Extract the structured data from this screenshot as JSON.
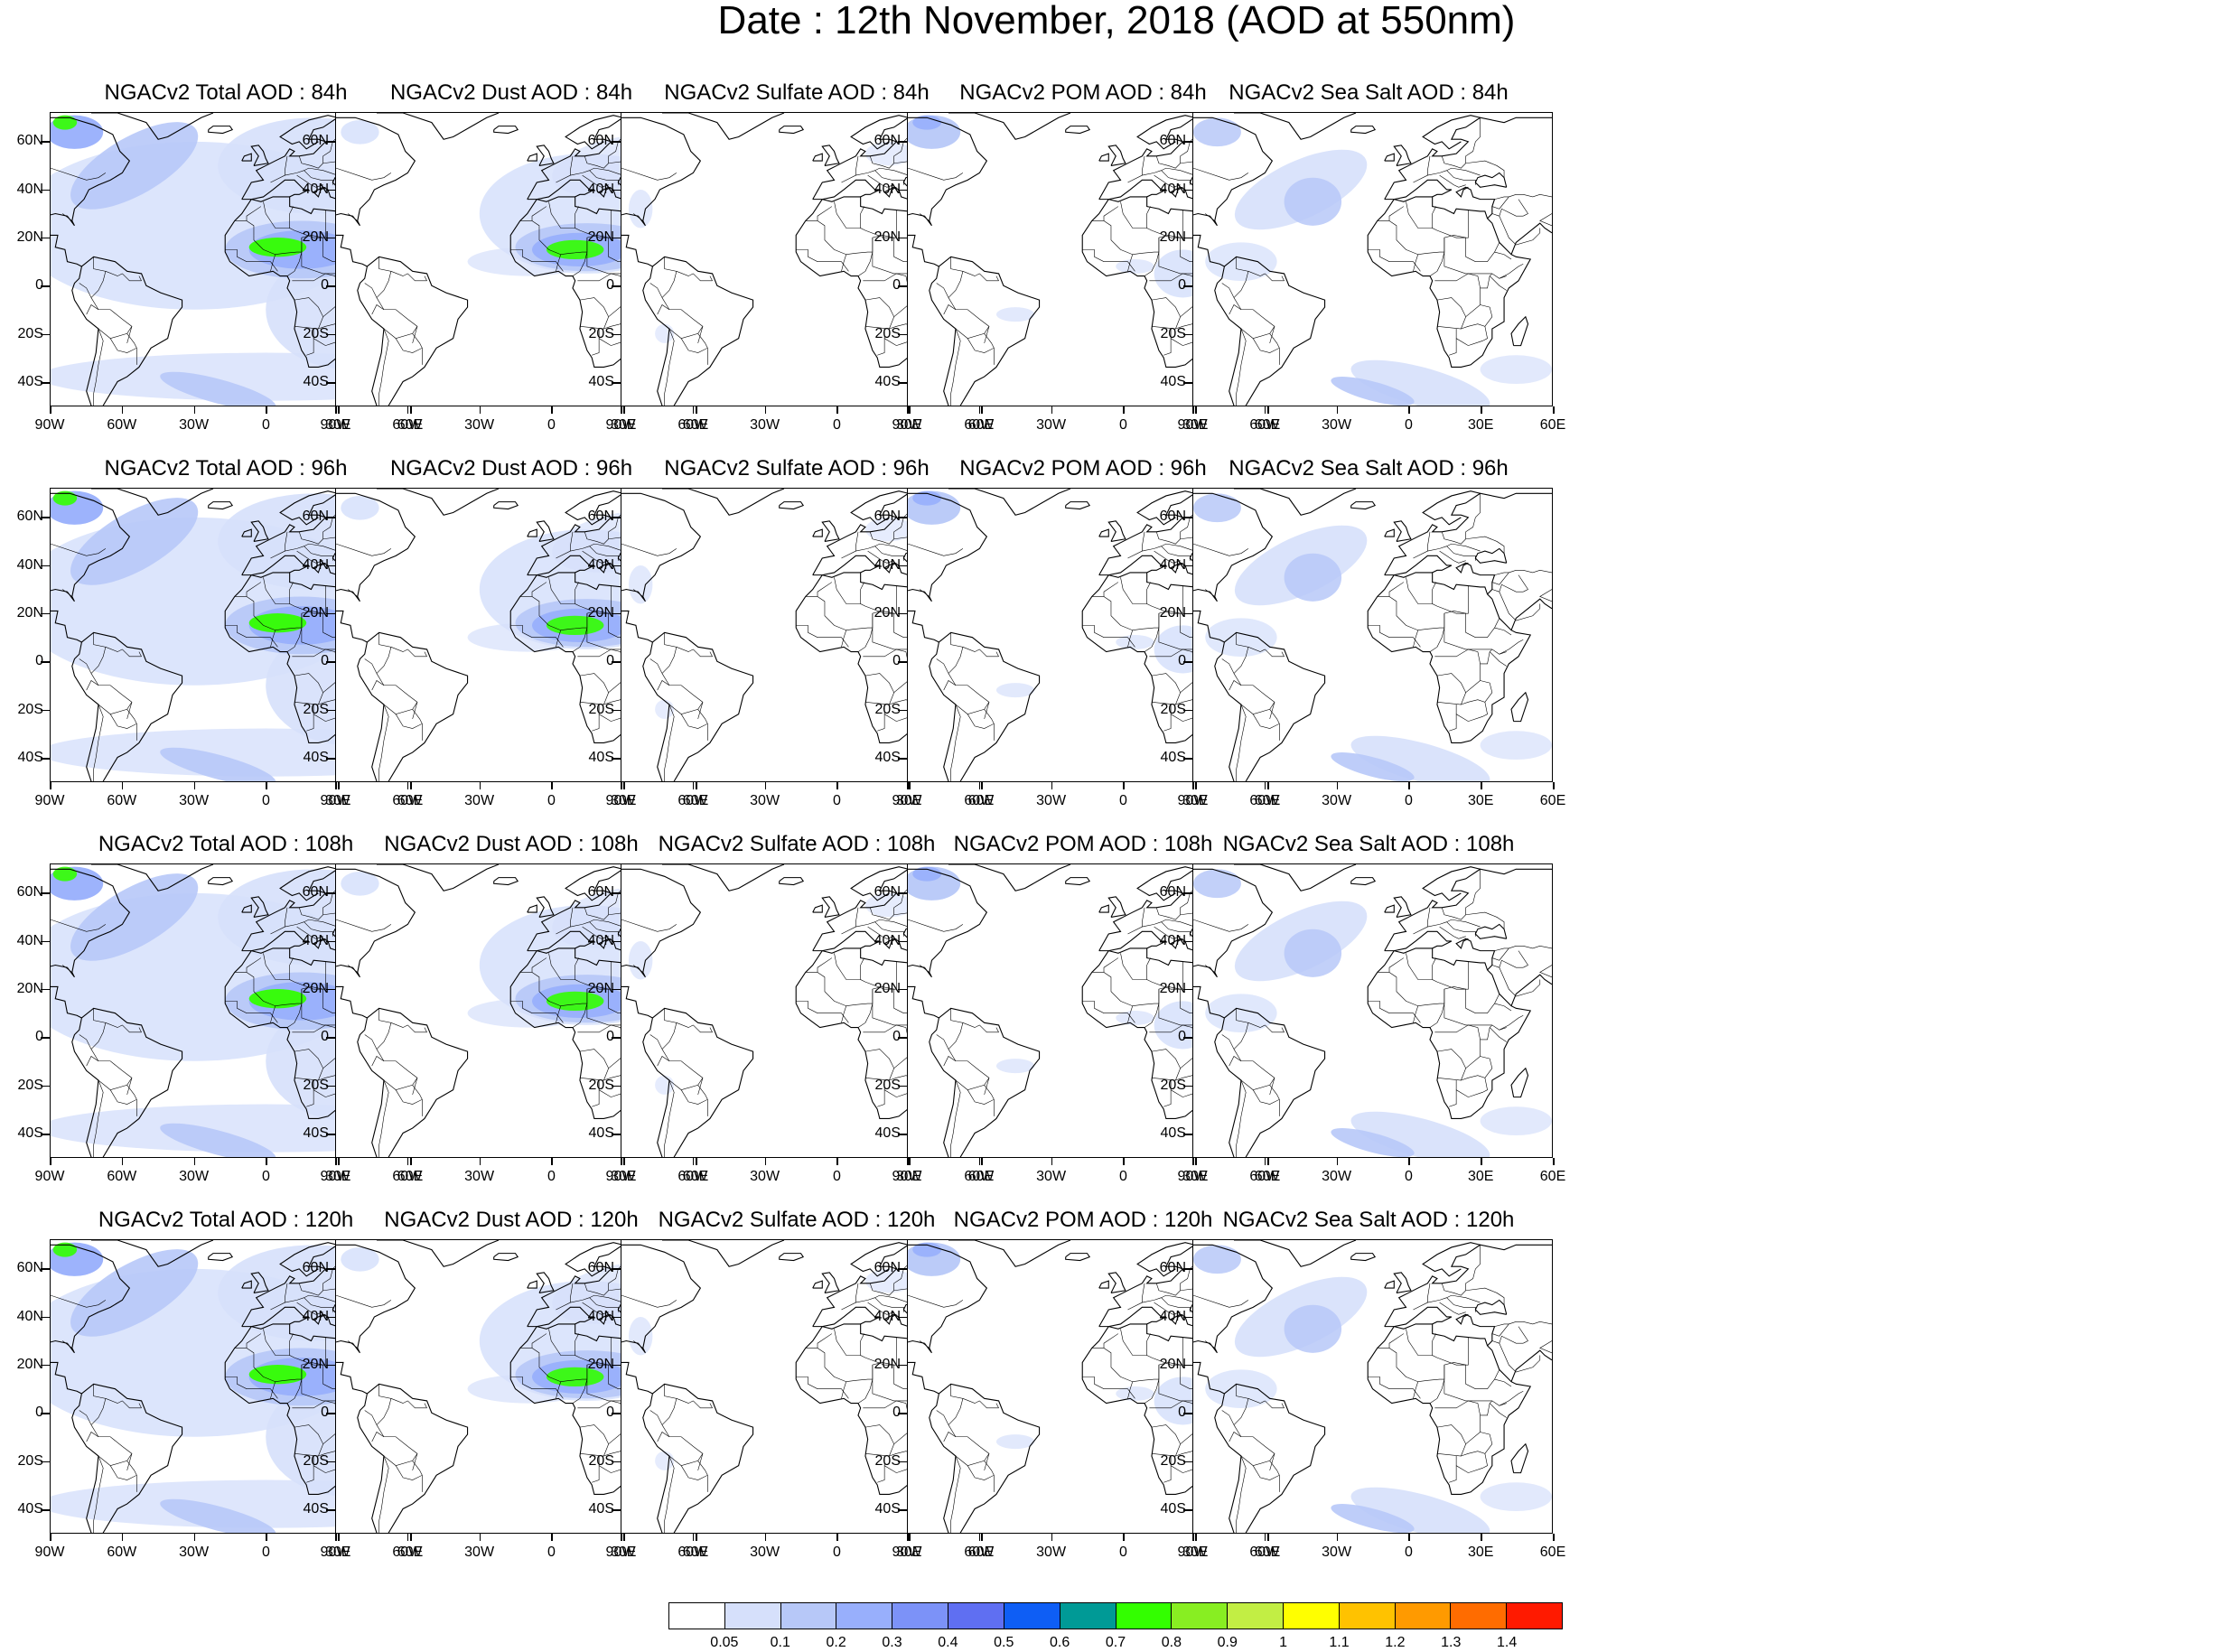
{
  "title": "Date : 12th November, 2018 (AOD at 550nm)",
  "lat_labels": [
    "60N",
    "40N",
    "20N",
    "0",
    "20S",
    "40S"
  ],
  "lon_labels": [
    "90W",
    "60W",
    "30W",
    "0",
    "30E",
    "60E"
  ],
  "panels": [
    {
      "title": "NGACv2 Total AOD : 84h",
      "species": "total",
      "lead": "84h"
    },
    {
      "title": "NGACv2 Dust AOD : 84h",
      "species": "dust",
      "lead": "84h"
    },
    {
      "title": "NGACv2 Sulfate AOD : 84h",
      "species": "sulfate",
      "lead": "84h"
    },
    {
      "title": "NGACv2 POM AOD : 84h",
      "species": "pom",
      "lead": "84h"
    },
    {
      "title": "NGACv2 Sea Salt AOD : 84h",
      "species": "seasalt",
      "lead": "84h"
    },
    {
      "title": "NGACv2 Total AOD : 96h",
      "species": "total",
      "lead": "96h"
    },
    {
      "title": "NGACv2 Dust AOD : 96h",
      "species": "dust",
      "lead": "96h"
    },
    {
      "title": "NGACv2 Sulfate AOD : 96h",
      "species": "sulfate",
      "lead": "96h"
    },
    {
      "title": "NGACv2 POM AOD : 96h",
      "species": "pom",
      "lead": "96h"
    },
    {
      "title": "NGACv2 Sea Salt AOD : 96h",
      "species": "seasalt",
      "lead": "96h"
    },
    {
      "title": "NGACv2 Total AOD : 108h",
      "species": "total",
      "lead": "108h"
    },
    {
      "title": "NGACv2 Dust AOD : 108h",
      "species": "dust",
      "lead": "108h"
    },
    {
      "title": "NGACv2 Sulfate AOD : 108h",
      "species": "sulfate",
      "lead": "108h"
    },
    {
      "title": "NGACv2 POM AOD : 108h",
      "species": "pom",
      "lead": "108h"
    },
    {
      "title": "NGACv2 Sea Salt AOD : 108h",
      "species": "seasalt",
      "lead": "108h"
    },
    {
      "title": "NGACv2 Total AOD : 120h",
      "species": "total",
      "lead": "120h"
    },
    {
      "title": "NGACv2 Dust AOD : 120h",
      "species": "dust",
      "lead": "120h"
    },
    {
      "title": "NGACv2 Sulfate AOD : 120h",
      "species": "sulfate",
      "lead": "120h"
    },
    {
      "title": "NGACv2 POM AOD : 120h",
      "species": "pom",
      "lead": "120h"
    },
    {
      "title": "NGACv2 Sea Salt  AOD : 120h",
      "species": "seasalt",
      "lead": "120h"
    }
  ],
  "colorbar": {
    "colors": [
      "#ffffff",
      "#d6e0fb",
      "#b7c8f8",
      "#98affc",
      "#7c92f8",
      "#5f6ff2",
      "#0e5ef5",
      "#009a96",
      "#33ff00",
      "#88ee22",
      "#c2ee44",
      "#ffff00",
      "#ffc200",
      "#ff9a00",
      "#ff6c00",
      "#ff1a00"
    ],
    "labels": [
      "0.05",
      "0.1",
      "0.2",
      "0.3",
      "0.4",
      "0.5",
      "0.6",
      "0.7",
      "0.8",
      "0.9",
      "1",
      "1.1",
      "1.2",
      "1.3",
      "1.4"
    ]
  }
}
